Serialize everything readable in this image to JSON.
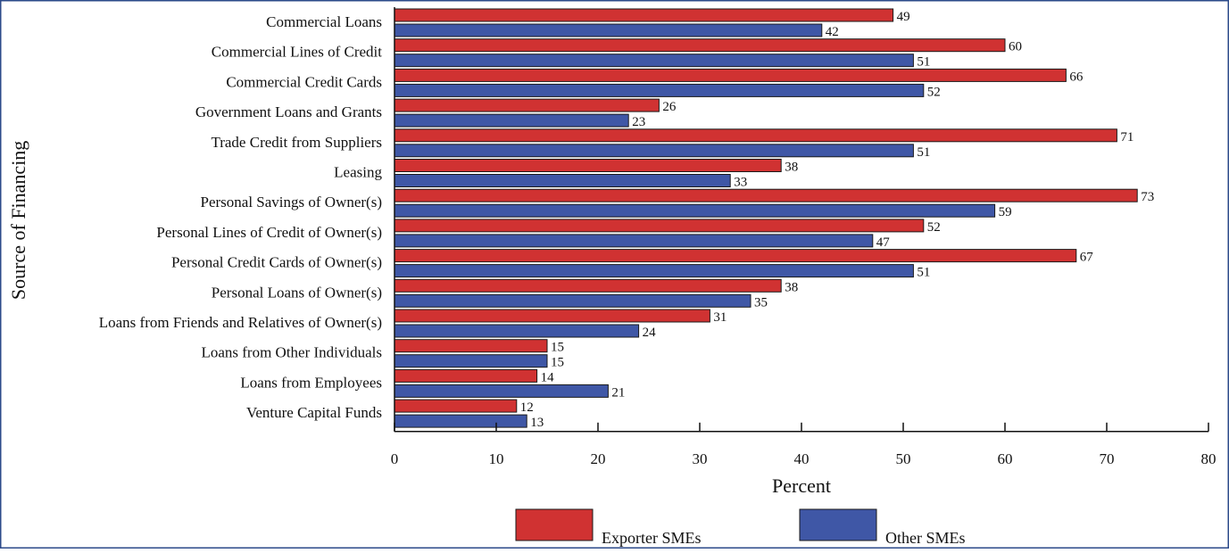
{
  "chart_data": {
    "type": "bar",
    "orientation": "horizontal",
    "title": "",
    "xlabel": "Percent",
    "ylabel": "Source of Financing",
    "xlim": [
      0,
      80
    ],
    "xticks": [
      0,
      10,
      20,
      30,
      40,
      50,
      60,
      70,
      80
    ],
    "grid": false,
    "legend_position": "bottom",
    "categories": [
      "Commercial Loans",
      "Commercial Lines of Credit",
      "Commercial Credit Cards",
      "Government Loans and Grants",
      "Trade Credit from Suppliers",
      "Leasing",
      "Personal Savings of Owner(s)",
      "Personal Lines of Credit of Owner(s)",
      "Personal Credit Cards of Owner(s)",
      "Personal Loans of Owner(s)",
      "Loans from Friends and Relatives of Owner(s)",
      "Loans from Other Individuals",
      "Loans from Employees",
      "Venture Capital Funds"
    ],
    "series": [
      {
        "name": "Exporter SMEs",
        "color": "#d03232",
        "values": [
          49,
          60,
          66,
          26,
          71,
          38,
          73,
          52,
          67,
          38,
          31,
          15,
          14,
          12
        ]
      },
      {
        "name": "Other SMEs",
        "color": "#3f57a6",
        "values": [
          42,
          51,
          52,
          23,
          51,
          33,
          59,
          47,
          51,
          35,
          24,
          15,
          21,
          13
        ]
      }
    ],
    "frame_color": "#2c4a8a"
  }
}
